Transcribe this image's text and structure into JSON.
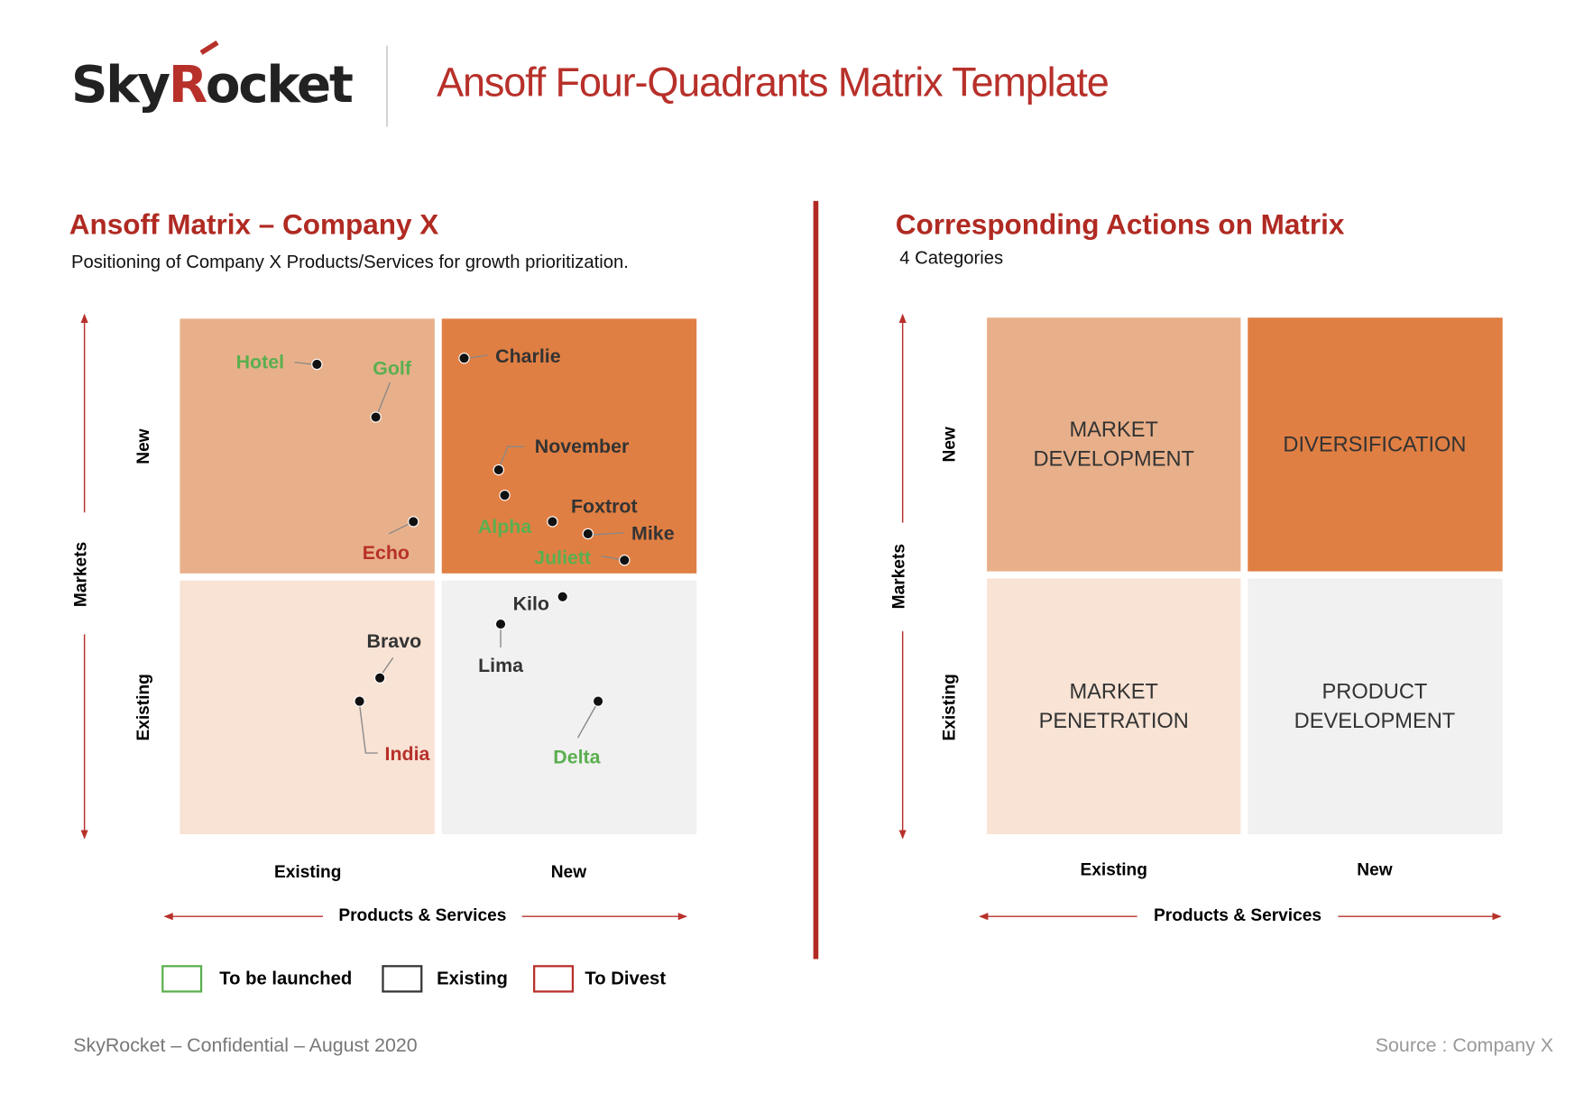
{
  "header": {
    "logo": [
      "Sky",
      "R",
      "ocket"
    ],
    "title": "Ansoff Four-Quadrants Matrix Template"
  },
  "left": {
    "title": "Ansoff Matrix – Company X",
    "subtitle": "Positioning of Company X Products/Services for growth prioritization.",
    "y_axis": {
      "label": "Markets",
      "ticks": [
        "New",
        "Existing"
      ]
    },
    "x_axis": {
      "label": "Products & Services",
      "ticks": [
        "Existing",
        "New"
      ]
    },
    "legend": [
      {
        "label": "To be launched",
        "color": "#5aaf4f",
        "items": [
          "Hotel",
          "Golf",
          "Alpha",
          "Juliett",
          "Delta"
        ]
      },
      {
        "label": "Existing",
        "color": "#333333",
        "items": [
          "Charlie",
          "November",
          "Foxtrot",
          "Mike",
          "Kilo",
          "Lima",
          "Bravo"
        ]
      },
      {
        "label": "To Divest",
        "color": "#b8302a",
        "items": [
          "Echo",
          "India"
        ]
      }
    ]
  },
  "right": {
    "title": "Corresponding Actions on Matrix",
    "subtitle": "4 Categories",
    "y_axis": {
      "label": "Markets",
      "ticks": [
        "New",
        "Existing"
      ]
    },
    "x_axis": {
      "label": "Products & Services",
      "ticks": [
        "Existing",
        "New"
      ]
    },
    "quadrants": [
      [
        "MARKET",
        "DEVELOPMENT"
      ],
      [
        "DIVERSIFICATION"
      ],
      [
        "MARKET",
        "PENETRATION"
      ],
      [
        "PRODUCT",
        "DEVELOPMENT"
      ]
    ]
  },
  "footer": {
    "left": "SkyRocket – Confidential – August 2020",
    "right": "Source : Company X"
  }
}
